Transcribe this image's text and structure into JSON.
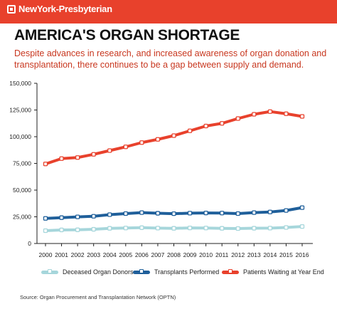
{
  "header": {
    "brand": "NewYork-Presbyterian",
    "bar_color": "#e8412c"
  },
  "title": "AMERICA'S ORGAN SHORTAGE",
  "subtitle": "Despite advances in research, and increased awareness of organ donation and transplantation, there continues to be a gap between supply and demand.",
  "source": "Source: Organ Procurement and Transplantation Network (OPTN)",
  "chart_data": {
    "type": "line",
    "x": [
      "2000",
      "2001",
      "2002",
      "2003",
      "2004",
      "2005",
      "2006",
      "2007",
      "2008",
      "2009",
      "2010",
      "2011",
      "2012",
      "2013",
      "2014",
      "2015",
      "2016"
    ],
    "ylim": [
      0,
      150000
    ],
    "yticks": [
      0,
      25000,
      50000,
      75000,
      100000,
      125000,
      150000
    ],
    "ytick_labels": [
      "0",
      "25,000",
      "50,000",
      "75,000",
      "100,000",
      "125,000",
      "150,000"
    ],
    "grid": false,
    "legend_position": "bottom",
    "series": [
      {
        "name": "Deceased Organ Donors",
        "color": "#a6d6db",
        "values": [
          12000,
          12700,
          12800,
          13300,
          14200,
          14500,
          14800,
          14400,
          14200,
          14600,
          14500,
          14200,
          14000,
          14300,
          14400,
          15000,
          15900
        ]
      },
      {
        "name": "Transplants Performed",
        "color": "#1f5f9a",
        "values": [
          23500,
          24200,
          24900,
          25500,
          27000,
          28000,
          28900,
          28300,
          27900,
          28400,
          28600,
          28500,
          28000,
          28900,
          29500,
          30900,
          33600
        ]
      },
      {
        "name": "Patients Waiting at Year End",
        "color": "#e8412c",
        "values": [
          74500,
          79500,
          80500,
          83500,
          87000,
          90500,
          94500,
          97500,
          101000,
          105500,
          110000,
          112500,
          117000,
          121000,
          123500,
          121500,
          119000
        ]
      }
    ]
  }
}
